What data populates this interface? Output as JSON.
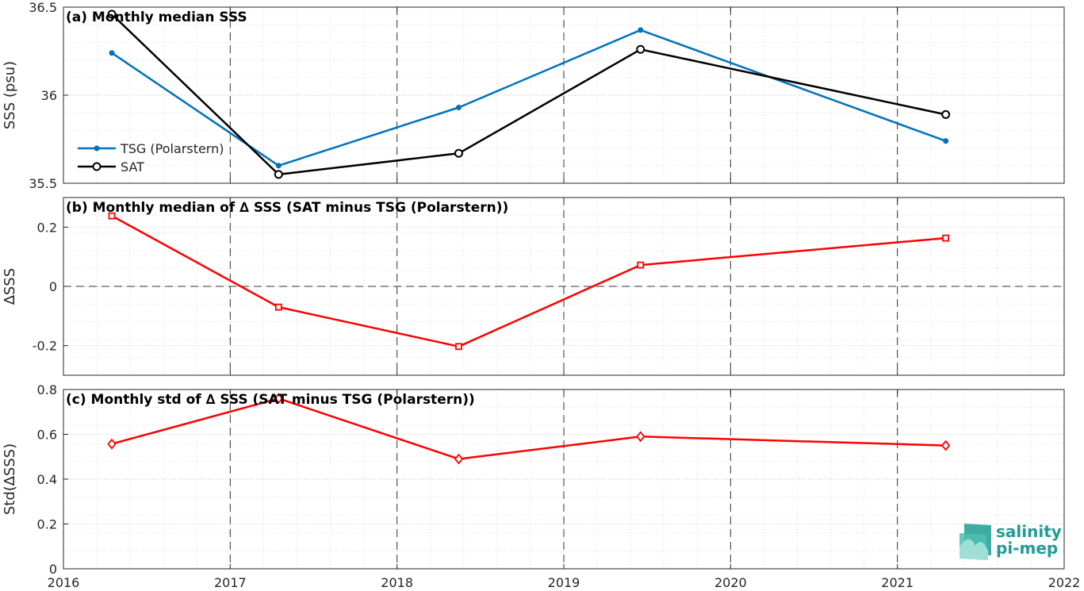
{
  "colors": {
    "tsg": "#0072BD",
    "sat": "#000000",
    "delta": "#FF0000",
    "logo": "#1f9c95"
  },
  "x_ticks": [
    "2016",
    "2017",
    "2018",
    "2019",
    "2020",
    "2021",
    "2022"
  ],
  "legend": {
    "tsg": "TSG (Polarstern)",
    "sat": "SAT"
  },
  "logo": {
    "line1": "salinity",
    "line2": "pi-mep"
  },
  "chart_data": [
    {
      "type": "line",
      "title": "(a) Monthly median SSS",
      "ylabel": "SSS (psu)",
      "ylim": [
        35.5,
        36.5
      ],
      "xlim": [
        2016,
        2022
      ],
      "y_ticks": [
        "35.5",
        "36",
        "36.5"
      ],
      "grid": true,
      "legend_position": "left",
      "series": [
        {
          "name": "TSG (Polarstern)",
          "marker": "dot",
          "x": [
            2016.29,
            2017.29,
            2018.37,
            2019.46,
            2021.29
          ],
          "y": [
            36.24,
            35.6,
            35.93,
            36.37,
            35.74
          ]
        },
        {
          "name": "SAT",
          "marker": "circle",
          "x": [
            2016.29,
            2017.29,
            2018.37,
            2019.46,
            2021.29
          ],
          "y": [
            36.46,
            35.55,
            35.67,
            36.26,
            35.89
          ]
        }
      ]
    },
    {
      "type": "line",
      "title": "(b) Monthly median of ∆ SSS (SAT minus TSG (Polarstern))",
      "ylabel": "∆SSS",
      "ylim": [
        -0.3,
        0.3
      ],
      "xlim": [
        2016,
        2022
      ],
      "y_ticks": [
        "-0.2",
        "0",
        "0.2"
      ],
      "grid": true,
      "zero_line": true,
      "series": [
        {
          "marker": "square",
          "x": [
            2016.29,
            2017.29,
            2018.37,
            2019.46,
            2021.29
          ],
          "y": [
            0.238,
            -0.07,
            -0.203,
            0.072,
            0.163
          ]
        }
      ]
    },
    {
      "type": "line",
      "title": "(c) Monthly std of ∆ SSS (SAT minus TSG (Polarstern))",
      "ylabel": "Std(∆SSS)",
      "ylim": [
        0,
        0.8
      ],
      "xlim": [
        2016,
        2022
      ],
      "y_ticks": [
        "0",
        "0.2",
        "0.4",
        "0.6",
        "0.8"
      ],
      "grid": true,
      "series": [
        {
          "marker": "diamond",
          "x": [
            2016.29,
            2017.29,
            2018.37,
            2019.46,
            2021.29
          ],
          "y": [
            0.557,
            0.76,
            0.49,
            0.59,
            0.55
          ]
        }
      ]
    }
  ]
}
